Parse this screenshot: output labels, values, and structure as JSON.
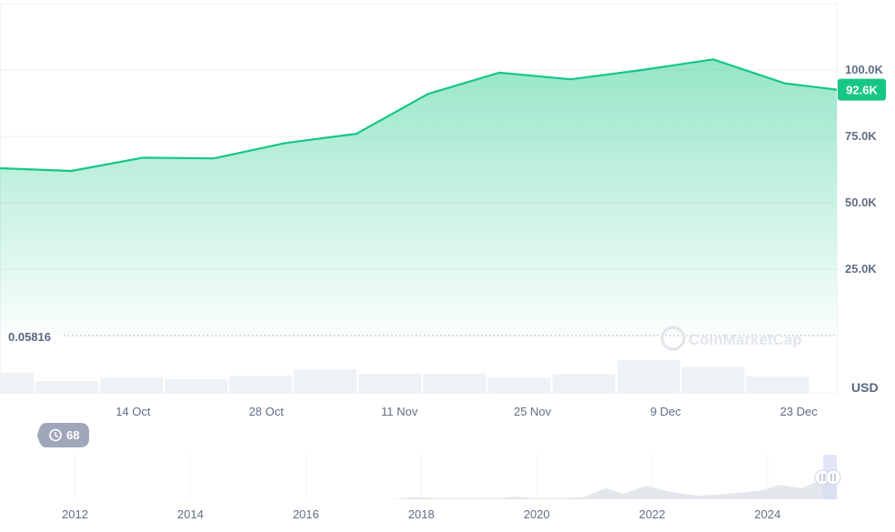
{
  "chart_data": {
    "type": "area",
    "currency_label": "USD",
    "y_ticks": [
      {
        "value": 25000,
        "label": "25.0K"
      },
      {
        "value": 50000,
        "label": "50.0K"
      },
      {
        "value": 75000,
        "label": "75.0K"
      },
      {
        "value": 100000,
        "label": "100.0K"
      }
    ],
    "ylim": [
      0,
      125000
    ],
    "x_ticks": [
      "14 Oct",
      "28 Oct",
      "11 Nov",
      "25 Nov",
      "9 Dec",
      "23 Dec"
    ],
    "x_tick_days": [
      14,
      28,
      42,
      56,
      70,
      84
    ],
    "xlim_days": [
      0,
      88
    ],
    "series": [
      {
        "x_days": [
          0,
          7.5,
          15,
          22.5,
          30,
          37.5,
          45,
          52.5,
          60,
          67.5,
          75,
          82.5,
          88
        ],
        "values": [
          63000,
          62000,
          67000,
          66700,
          72500,
          76000,
          91000,
          99000,
          96500,
          100000,
          104000,
          95000,
          92600
        ]
      }
    ],
    "current_price_label": "92.6K",
    "baseline_label": "0.05816",
    "volume": [
      0.62,
      0.36,
      0.48,
      0.42,
      0.52,
      0.72,
      0.58,
      0.58,
      0.46,
      0.58,
      1.0,
      0.8,
      0.5
    ],
    "navigator": {
      "x_ticks": [
        "2012",
        "2014",
        "2016",
        "2018",
        "2020",
        "2022",
        "2024"
      ],
      "events_badge": "68"
    },
    "colors": {
      "line": "#16c784",
      "badge": "#16c784",
      "volume": "#eff2f5",
      "navigator": "#e3e7ec"
    },
    "watermark": "CoinMarketCap"
  }
}
